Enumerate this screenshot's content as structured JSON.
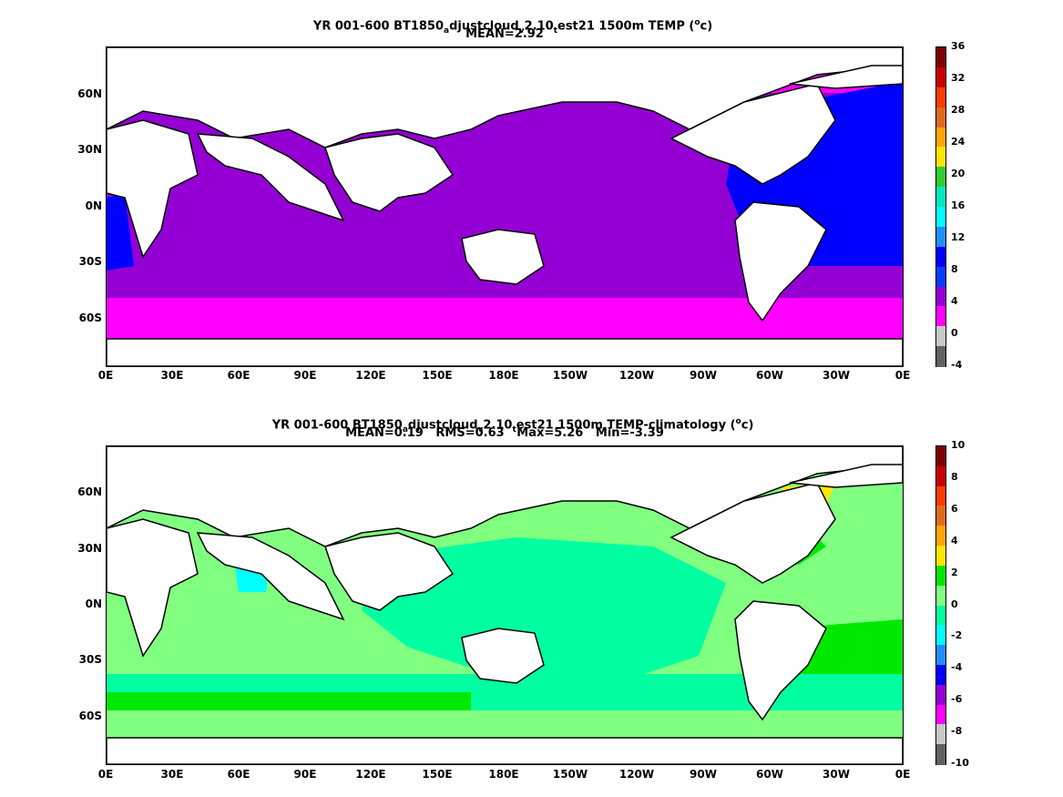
{
  "panels": [
    {
      "title_parts": [
        "YR 001-600 BT1850",
        "a",
        "djustcloud",
        "v",
        "2.10",
        "t",
        "est21 1500m TEMP (",
        "o",
        "c)"
      ],
      "stats": "MEAN=2.92",
      "colorbar": {
        "ticks": [
          "36",
          "32",
          "28",
          "24",
          "20",
          "16",
          "12",
          "8",
          "4",
          "0",
          "-4"
        ],
        "colors": [
          "#7f0000",
          "#c80000",
          "#ff3c00",
          "#e06a20",
          "#ffa500",
          "#ffe600",
          "#33cc33",
          "#00e8c0",
          "#00ffff",
          "#1e90ff",
          "#0000ff",
          "#0a3cff",
          "#9400d3",
          "#ff00ff",
          "#c8c8c8",
          "#606060"
        ]
      }
    },
    {
      "title_parts": [
        "YR 001-600 BT1850",
        "a",
        "djustcloud",
        "v",
        "2.10",
        "t",
        "est21 1500m TEMP-climatology (",
        "o",
        "c)"
      ],
      "stats": "MEAN=0.19   RMS=0.63   Max=5.26   Min=-3.39",
      "colorbar": {
        "ticks": [
          "10",
          "8",
          "6",
          "4",
          "2",
          "0",
          "-2",
          "-4",
          "-6",
          "-8",
          "-10"
        ],
        "colors": [
          "#7f0000",
          "#c80000",
          "#ff3c00",
          "#e06a20",
          "#ffa500",
          "#ffe600",
          "#00e800",
          "#80ff80",
          "#00ffa0",
          "#00ffff",
          "#1e90ff",
          "#0000ff",
          "#9400d3",
          "#ff00ff",
          "#c8c8c8",
          "#606060"
        ]
      }
    }
  ],
  "axes": {
    "y_labels": [
      "60N",
      "30N",
      "0N",
      "30S",
      "60S"
    ],
    "x_labels": [
      "0E",
      "30E",
      "60E",
      "90E",
      "120E",
      "150E",
      "180E",
      "150W",
      "120W",
      "90W",
      "60W",
      "30W",
      "0E"
    ]
  }
}
